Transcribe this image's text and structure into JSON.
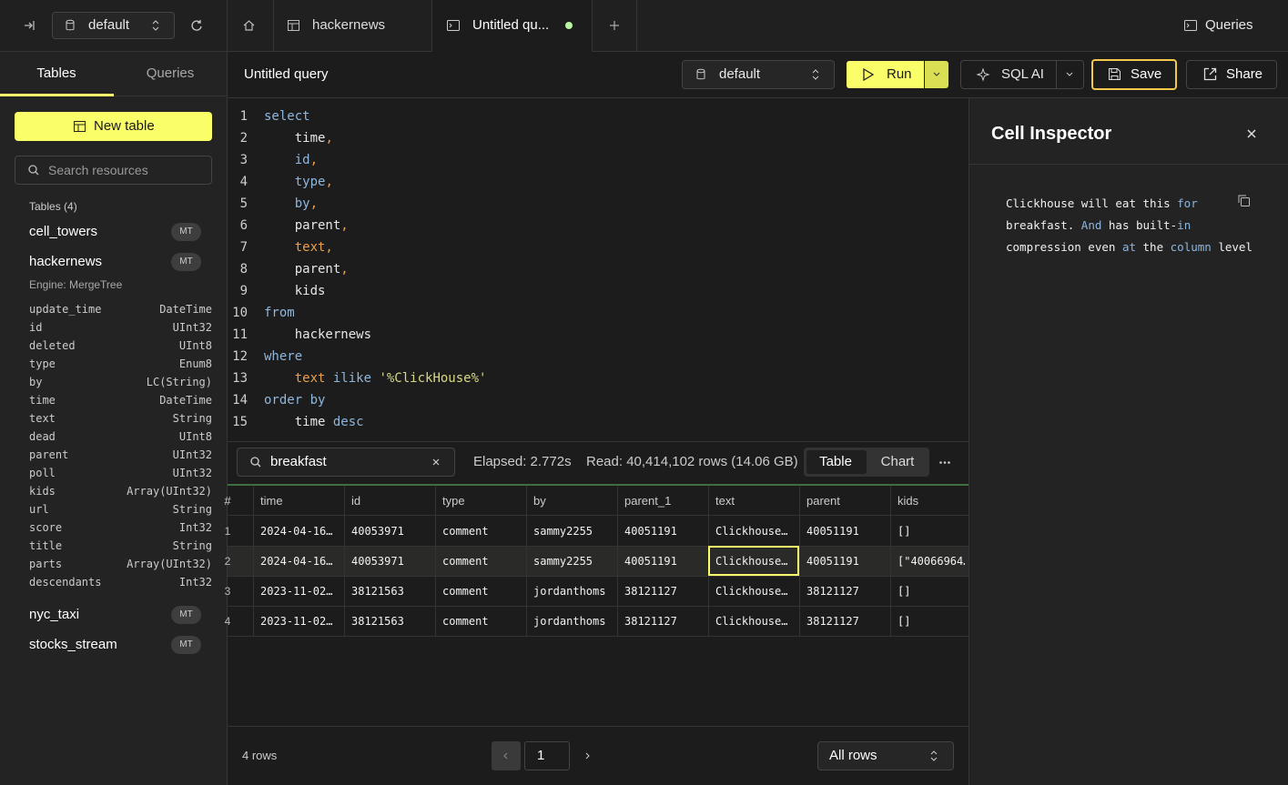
{
  "topbar": {
    "database": "default",
    "tabs": [
      "hackernews",
      "Untitled qu..."
    ],
    "queries": "Queries"
  },
  "sidebar": {
    "tabs": [
      "Tables",
      "Queries"
    ],
    "new_table": "New table",
    "search_placeholder": "Search resources",
    "tables_header": "Tables (4)",
    "tables": [
      {
        "name": "cell_towers",
        "badge": "MT"
      },
      {
        "name": "hackernews",
        "badge": "MT",
        "engine": "Engine: MergeTree",
        "columns": [
          [
            "update_time",
            "DateTime"
          ],
          [
            "id",
            "UInt32"
          ],
          [
            "deleted",
            "UInt8"
          ],
          [
            "type",
            "Enum8"
          ],
          [
            "by",
            "LC(String)"
          ],
          [
            "time",
            "DateTime"
          ],
          [
            "text",
            "String"
          ],
          [
            "dead",
            "UInt8"
          ],
          [
            "parent",
            "UInt32"
          ],
          [
            "poll",
            "UInt32"
          ],
          [
            "kids",
            "Array(UInt32)"
          ],
          [
            "url",
            "String"
          ],
          [
            "score",
            "Int32"
          ],
          [
            "title",
            "String"
          ],
          [
            "parts",
            "Array(UInt32)"
          ],
          [
            "descendants",
            "Int32"
          ]
        ]
      },
      {
        "name": "nyc_taxi",
        "badge": "MT"
      },
      {
        "name": "stocks_stream",
        "badge": "MT"
      }
    ]
  },
  "toolbar": {
    "title": "Untitled query",
    "database": "default",
    "run": "Run",
    "sql_ai": "SQL AI",
    "save": "Save",
    "share": "Share"
  },
  "editor": {
    "lines": [
      {
        "number": 1,
        "tokens": [
          [
            "select",
            "#8fb6dc"
          ]
        ]
      },
      {
        "number": 2,
        "tokens": [
          [
            "    time",
            "#e6e6e6"
          ],
          [
            ",",
            "#e8a050"
          ]
        ]
      },
      {
        "number": 3,
        "tokens": [
          [
            "    id",
            "#8fb6dc"
          ],
          [
            ",",
            "#e8a050"
          ]
        ]
      },
      {
        "number": 4,
        "tokens": [
          [
            "    type",
            "#8fb6dc"
          ],
          [
            ",",
            "#e8a050"
          ]
        ]
      },
      {
        "number": 5,
        "tokens": [
          [
            "    by",
            "#8fb6dc"
          ],
          [
            ",",
            "#e8a050"
          ]
        ]
      },
      {
        "number": 6,
        "tokens": [
          [
            "    parent",
            "#e6e6e6"
          ],
          [
            ",",
            "#e8a050"
          ]
        ]
      },
      {
        "number": 7,
        "tokens": [
          [
            "    text,",
            "#e8a050"
          ]
        ]
      },
      {
        "number": 8,
        "tokens": [
          [
            "    parent",
            "#e6e6e6"
          ],
          [
            ",",
            "#e8a050"
          ]
        ]
      },
      {
        "number": 9,
        "tokens": [
          [
            "    kids",
            "#e6e6e6"
          ]
        ]
      },
      {
        "number": 10,
        "tokens": [
          [
            "from",
            "#8fb6dc"
          ]
        ]
      },
      {
        "number": 11,
        "tokens": [
          [
            "    hackernews",
            "#e6e6e6"
          ]
        ]
      },
      {
        "number": 12,
        "tokens": [
          [
            "where",
            "#8fb6dc"
          ]
        ]
      },
      {
        "number": 13,
        "tokens": [
          [
            "    text",
            "#e8a050"
          ],
          [
            " ilike ",
            "#8fb6dc"
          ],
          [
            "'%ClickHouse%'",
            "#d8d88a"
          ]
        ]
      },
      {
        "number": 14,
        "tokens": [
          [
            "order by",
            "#8fb6dc"
          ]
        ]
      },
      {
        "number": 15,
        "tokens": [
          [
            "    time",
            "#e6e6e6"
          ],
          [
            " desc",
            "#8fb6dc"
          ]
        ]
      }
    ]
  },
  "results": {
    "search": "breakfast",
    "elapsed": "Elapsed: 2.772s",
    "read": "Read: 40,414,102 rows (14.06 GB)",
    "views": [
      "Table",
      "Chart"
    ],
    "columns": [
      "#",
      "time",
      "id",
      "type",
      "by",
      "parent_1",
      "text",
      "parent",
      "kids"
    ],
    "rows": [
      [
        1,
        "2024-04-16…",
        40053971,
        "comment",
        "sammy2255",
        40051191,
        "Clickhouse…",
        40051191,
        "[]"
      ],
      [
        2,
        "2024-04-16…",
        40053971,
        "comment",
        "sammy2255",
        40051191,
        "Clickhouse…",
        40051191,
        "[\"40066964…"
      ],
      [
        3,
        "2023-11-02…",
        38121563,
        "comment",
        "jordanthoms",
        38121127,
        "Clickhouse…",
        38121127,
        "[]"
      ],
      [
        4,
        "2023-11-02…",
        38121563,
        "comment",
        "jordanthoms",
        38121127,
        "Clickhouse…",
        38121127,
        "[]"
      ]
    ]
  },
  "footer": {
    "row_count": "4 rows",
    "page": "1",
    "rows_filter": "All rows"
  },
  "inspector": {
    "title": "Cell Inspector",
    "lines": [
      [
        [
          "Clickhouse will eat this ",
          "#f0f0f0"
        ],
        [
          "for",
          "#8fb6dc"
        ]
      ],
      [
        [
          "breakfast. ",
          "#f0f0f0"
        ],
        [
          "And",
          "#8fb6dc"
        ],
        [
          " has built-",
          "#f0f0f0"
        ],
        [
          "in",
          "#8fb6dc"
        ]
      ],
      [
        [
          "compression even ",
          "#f0f0f0"
        ],
        [
          "at",
          "#8fb6dc"
        ],
        [
          " the ",
          "#f0f0f0"
        ],
        [
          "column",
          "#8fb6dc"
        ],
        [
          " level",
          "#f0f0f0"
        ]
      ]
    ]
  }
}
